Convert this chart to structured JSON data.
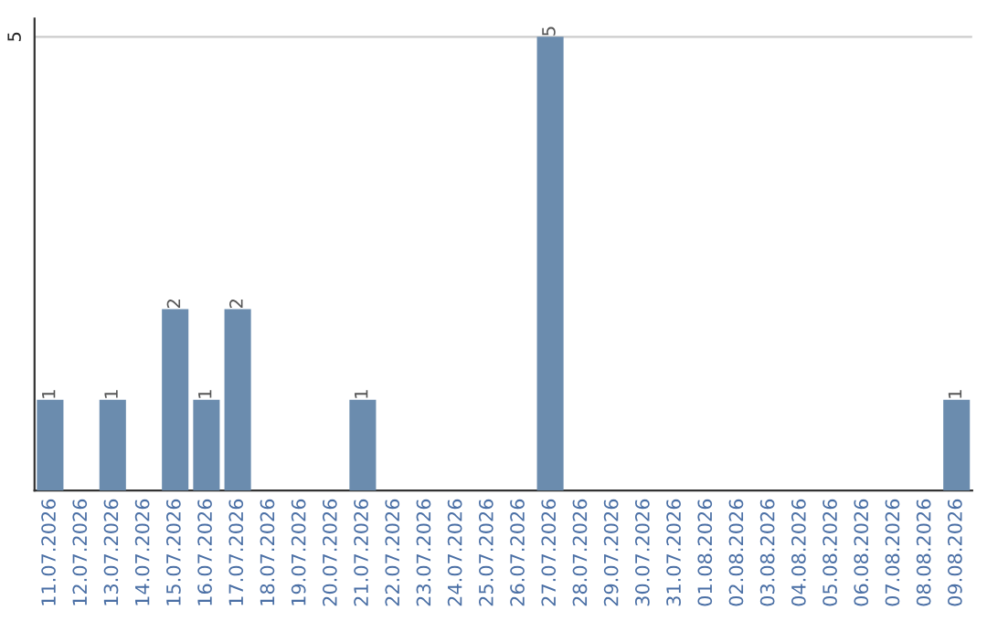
{
  "chart_data": {
    "type": "bar",
    "categories": [
      "11.07.2026",
      "12.07.2026",
      "13.07.2026",
      "14.07.2026",
      "15.07.2026",
      "16.07.2026",
      "17.07.2026",
      "18.07.2026",
      "19.07.2026",
      "20.07.2026",
      "21.07.2026",
      "22.07.2026",
      "23.07.2026",
      "24.07.2026",
      "25.07.2026",
      "26.07.2026",
      "27.07.2026",
      "28.07.2026",
      "29.07.2026",
      "30.07.2026",
      "31.07.2026",
      "01.08.2026",
      "02.08.2026",
      "03.08.2026",
      "04.08.2026",
      "05.08.2026",
      "06.08.2026",
      "07.08.2026",
      "08.08.2026",
      "09.08.2026"
    ],
    "values": [
      1,
      0,
      1,
      0,
      2,
      1,
      2,
      0,
      0,
      0,
      1,
      0,
      0,
      0,
      0,
      0,
      5,
      0,
      0,
      0,
      0,
      0,
      0,
      0,
      0,
      0,
      0,
      0,
      0,
      1
    ],
    "value_labels": [
      "1",
      null,
      "1",
      null,
      "2",
      "1",
      "2",
      null,
      null,
      null,
      "1",
      null,
      null,
      null,
      null,
      null,
      "5",
      null,
      null,
      null,
      null,
      null,
      null,
      null,
      null,
      null,
      null,
      null,
      null,
      "1"
    ],
    "color": "#6b8cae",
    "ylim": [
      0,
      5.2
    ],
    "yticks": [
      5
    ],
    "grid": "y"
  }
}
